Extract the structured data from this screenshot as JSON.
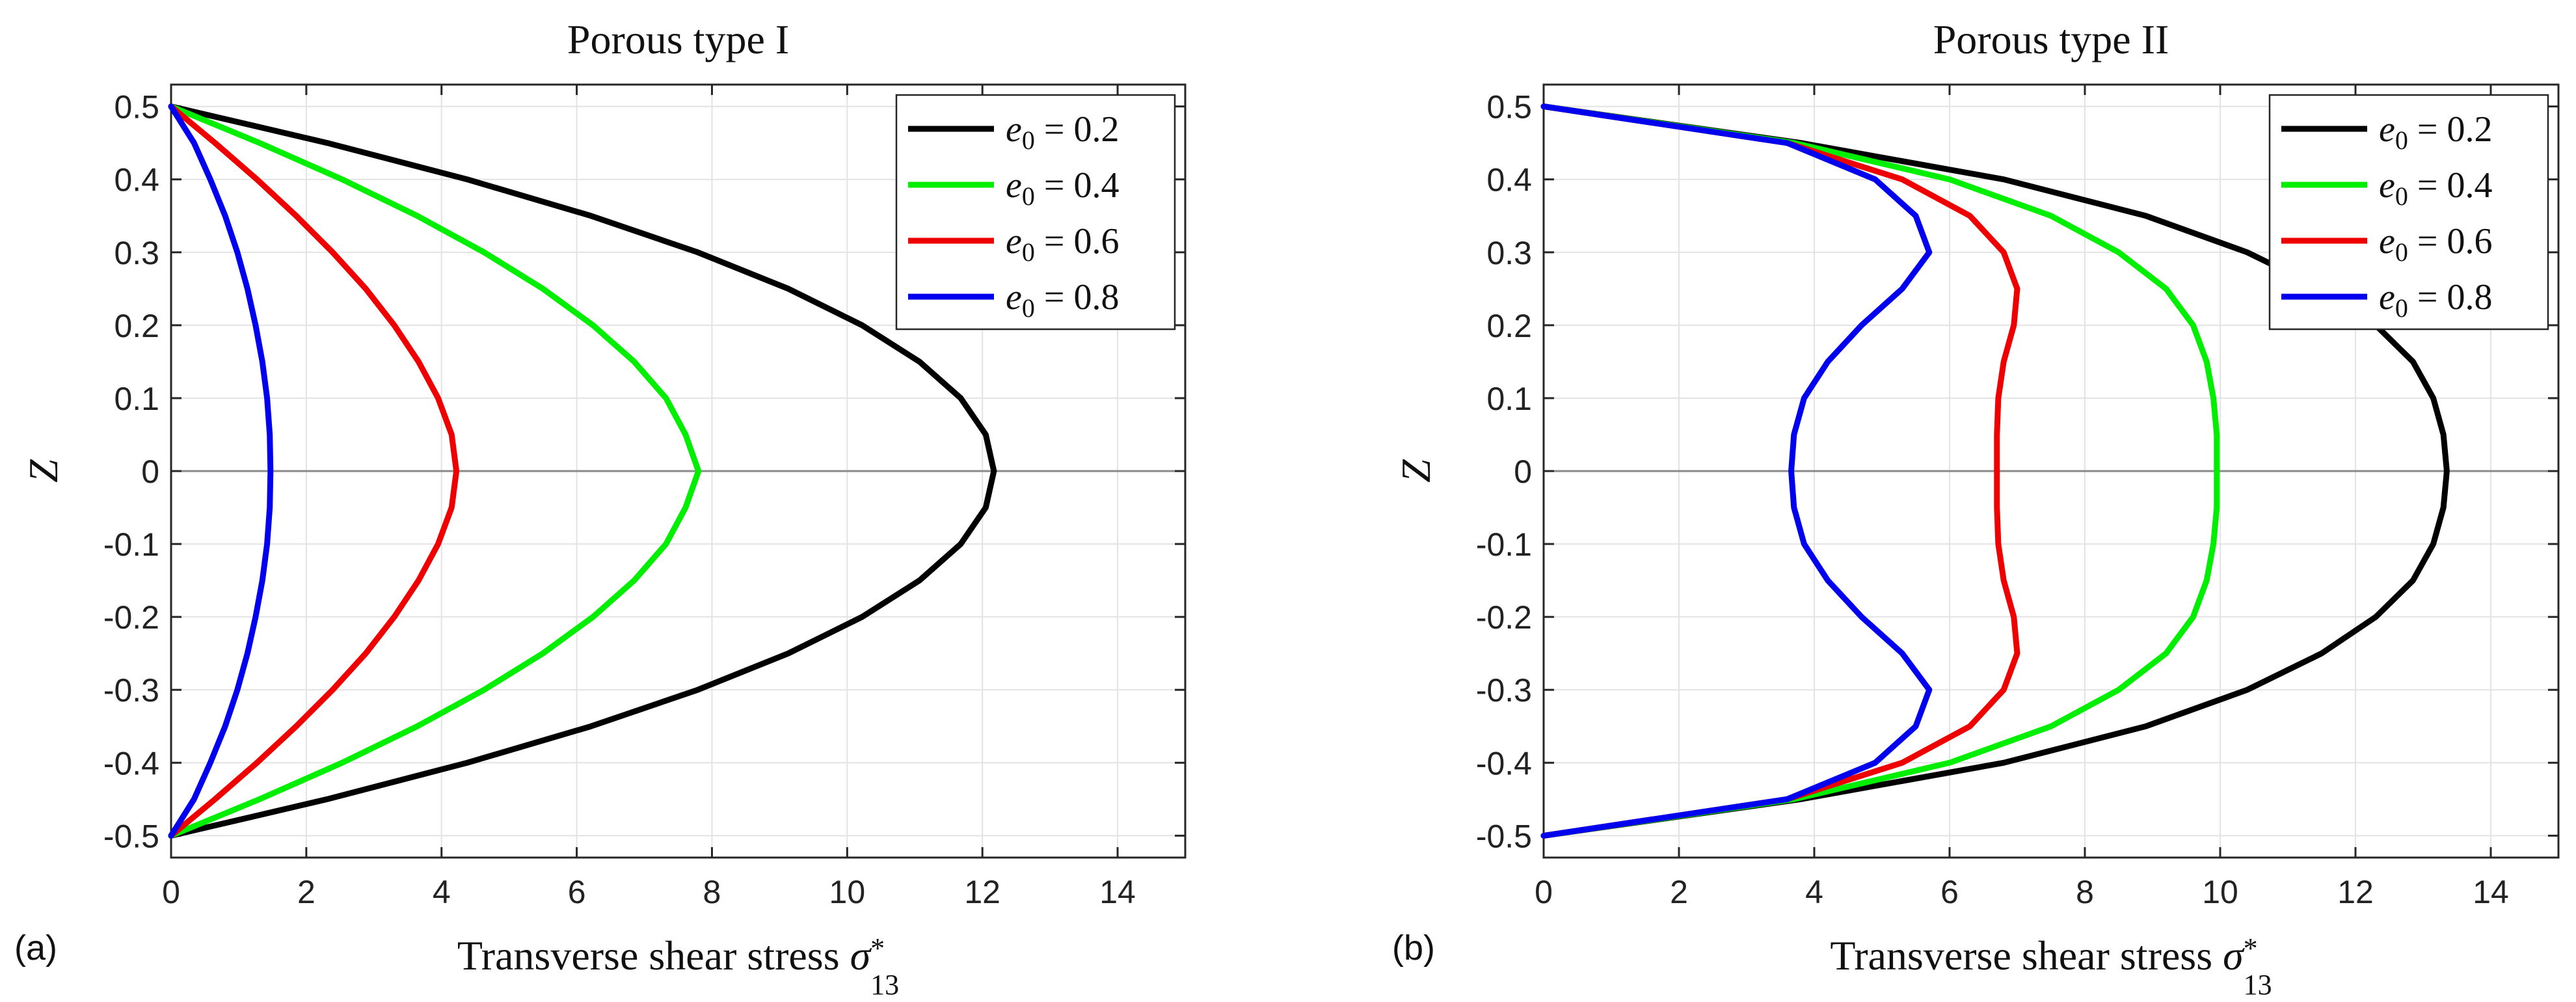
{
  "chart_data": [
    {
      "type": "line",
      "panel_label": "(a)",
      "title": "Porous type I",
      "xlabel_prefix": "Transverse shear stress ",
      "xlabel_symbol": "σ",
      "xlabel_sup": "*",
      "xlabel_sub": "13",
      "ylabel": "Z",
      "xlim": [
        0,
        15
      ],
      "ylim": [
        -0.53,
        0.53
      ],
      "xticks": [
        0,
        2,
        4,
        6,
        8,
        10,
        12,
        14
      ],
      "yticks": [
        -0.5,
        -0.4,
        -0.3,
        -0.2,
        -0.1,
        0,
        0.1,
        0.2,
        0.3,
        0.4,
        0.5
      ],
      "xtick_labels": [
        "0",
        "2",
        "4",
        "6",
        "8",
        "10",
        "12",
        "14"
      ],
      "ytick_labels": [
        "-0.5",
        "-0.4",
        "-0.3",
        "-0.2",
        "-0.1",
        "0",
        "0.1",
        "0.2",
        "0.3",
        "0.4",
        "0.5"
      ],
      "grid": true,
      "legend_position": "top-right",
      "y": [
        -0.5,
        -0.45,
        -0.4,
        -0.35,
        -0.3,
        -0.25,
        -0.2,
        -0.15,
        -0.1,
        -0.05,
        0,
        0.05,
        0.1,
        0.15,
        0.2,
        0.25,
        0.3,
        0.35,
        0.4,
        0.45,
        0.5
      ],
      "series": [
        {
          "name": "e0 = 0.2",
          "legend_var": "e",
          "legend_sub": "0",
          "legend_val": "= 0.2",
          "color": "#000000",
          "x": [
            0,
            2.31,
            4.38,
            6.21,
            7.79,
            9.13,
            10.22,
            11.07,
            11.68,
            12.05,
            12.17,
            12.05,
            11.68,
            11.07,
            10.22,
            9.13,
            7.79,
            6.21,
            4.38,
            2.31,
            0
          ]
        },
        {
          "name": "e0 = 0.4",
          "legend_var": "e",
          "legend_sub": "0",
          "legend_val": "= 0.4",
          "color": "#00ee00",
          "x": [
            0,
            1.31,
            2.53,
            3.64,
            4.63,
            5.5,
            6.24,
            6.85,
            7.32,
            7.61,
            7.8,
            7.61,
            7.32,
            6.85,
            6.24,
            5.5,
            4.63,
            3.64,
            2.53,
            1.31,
            0
          ]
        },
        {
          "name": "e0 = 0.6",
          "legend_var": "e",
          "legend_sub": "0",
          "legend_val": "= 0.6",
          "color": "#ee0000",
          "x": [
            0,
            0.65,
            1.27,
            1.85,
            2.39,
            2.88,
            3.3,
            3.66,
            3.95,
            4.15,
            4.22,
            4.15,
            3.95,
            3.66,
            3.3,
            2.88,
            2.39,
            1.85,
            1.27,
            0.65,
            0
          ]
        },
        {
          "name": "e0 = 0.8",
          "legend_var": "e",
          "legend_sub": "0",
          "legend_val": "= 0.8",
          "color": "#0000ee",
          "x": [
            0,
            0.34,
            0.58,
            0.8,
            0.98,
            1.13,
            1.25,
            1.35,
            1.42,
            1.46,
            1.47,
            1.46,
            1.42,
            1.35,
            1.25,
            1.13,
            0.98,
            0.8,
            0.58,
            0.34,
            0
          ]
        }
      ]
    },
    {
      "type": "line",
      "panel_label": "(b)",
      "title": "Porous type II",
      "xlabel_prefix": "Transverse shear stress ",
      "xlabel_symbol": "σ",
      "xlabel_sup": "*",
      "xlabel_sub": "13",
      "ylabel": "Z",
      "xlim": [
        0,
        15
      ],
      "ylim": [
        -0.53,
        0.53
      ],
      "xticks": [
        0,
        2,
        4,
        6,
        8,
        10,
        12,
        14
      ],
      "yticks": [
        -0.5,
        -0.4,
        -0.3,
        -0.2,
        -0.1,
        0,
        0.1,
        0.2,
        0.3,
        0.4,
        0.5
      ],
      "xtick_labels": [
        "0",
        "2",
        "4",
        "6",
        "8",
        "10",
        "12",
        "14"
      ],
      "ytick_labels": [
        "-0.5",
        "-0.4",
        "-0.3",
        "-0.2",
        "-0.1",
        "0",
        "0.1",
        "0.2",
        "0.3",
        "0.4",
        "0.5"
      ],
      "grid": true,
      "legend_position": "top-right",
      "y": [
        -0.5,
        -0.45,
        -0.4,
        -0.35,
        -0.3,
        -0.25,
        -0.2,
        -0.15,
        -0.1,
        -0.05,
        0,
        0.05,
        0.1,
        0.15,
        0.2,
        0.25,
        0.3,
        0.35,
        0.4,
        0.45,
        0.5
      ],
      "series": [
        {
          "name": "e0 = 0.2",
          "legend_var": "e",
          "legend_sub": "0",
          "legend_val": "= 0.2",
          "color": "#000000",
          "x": [
            0,
            3.8,
            6.8,
            8.9,
            10.4,
            11.5,
            12.3,
            12.85,
            13.15,
            13.3,
            13.35,
            13.3,
            13.15,
            12.85,
            12.3,
            11.5,
            10.4,
            8.9,
            6.8,
            3.8,
            0
          ]
        },
        {
          "name": "e0 = 0.4",
          "legend_var": "e",
          "legend_sub": "0",
          "legend_val": "= 0.4",
          "color": "#00ee00",
          "x": [
            0,
            3.7,
            6.0,
            7.5,
            8.5,
            9.2,
            9.6,
            9.8,
            9.9,
            9.95,
            9.95,
            9.95,
            9.9,
            9.8,
            9.6,
            9.2,
            8.5,
            7.5,
            6.0,
            3.7,
            0
          ]
        },
        {
          "name": "e0 = 0.6",
          "legend_var": "e",
          "legend_sub": "0",
          "legend_val": "= 0.6",
          "color": "#ee0000",
          "x": [
            0,
            3.6,
            5.3,
            6.3,
            6.8,
            7.0,
            6.95,
            6.8,
            6.72,
            6.7,
            6.7,
            6.7,
            6.72,
            6.8,
            6.95,
            7.0,
            6.8,
            6.3,
            5.3,
            3.6,
            0
          ]
        },
        {
          "name": "e0 = 0.8",
          "legend_var": "e",
          "legend_sub": "0",
          "legend_val": "= 0.8",
          "color": "#0000ee",
          "x": [
            0,
            3.6,
            4.9,
            5.5,
            5.7,
            5.3,
            4.7,
            4.2,
            3.85,
            3.7,
            3.66,
            3.7,
            3.85,
            4.2,
            4.7,
            5.3,
            5.7,
            5.5,
            4.9,
            3.6,
            0
          ]
        }
      ]
    }
  ]
}
